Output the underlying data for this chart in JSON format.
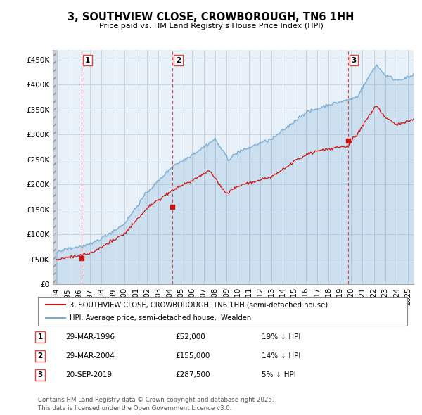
{
  "title": "3, SOUTHVIEW CLOSE, CROWBOROUGH, TN6 1HH",
  "subtitle": "Price paid vs. HM Land Registry's House Price Index (HPI)",
  "hpi_color": "#7aadd4",
  "hpi_fill_color": "#ddeeff",
  "price_color": "#cc1111",
  "dashed_color": "#dd4444",
  "ylim": [
    0,
    470000
  ],
  "yticks": [
    0,
    50000,
    100000,
    150000,
    200000,
    250000,
    300000,
    350000,
    400000,
    450000
  ],
  "ytick_labels": [
    "£0",
    "£50K",
    "£100K",
    "£150K",
    "£200K",
    "£250K",
    "£300K",
    "£350K",
    "£400K",
    "£450K"
  ],
  "xlim_start": 1993.7,
  "xlim_end": 2025.5,
  "xticks": [
    1994,
    1995,
    1996,
    1997,
    1998,
    1999,
    2000,
    2001,
    2002,
    2003,
    2004,
    2005,
    2006,
    2007,
    2008,
    2009,
    2010,
    2011,
    2012,
    2013,
    2014,
    2015,
    2016,
    2017,
    2018,
    2019,
    2020,
    2021,
    2022,
    2023,
    2024,
    2025
  ],
  "transactions": [
    {
      "label": "1",
      "date": "29-MAR-1996",
      "price": 52000,
      "hpi_pct": "19%",
      "year": 1996.24
    },
    {
      "label": "2",
      "date": "29-MAR-2004",
      "price": 155000,
      "hpi_pct": "14%",
      "year": 2004.24
    },
    {
      "label": "3",
      "date": "20-SEP-2019",
      "price": 287500,
      "hpi_pct": "5%",
      "year": 2019.72
    }
  ],
  "legend_line1": "3, SOUTHVIEW CLOSE, CROWBOROUGH, TN6 1HH (semi-detached house)",
  "legend_line2": "HPI: Average price, semi-detached house,  Wealden",
  "footer": "Contains HM Land Registry data © Crown copyright and database right 2025.\nThis data is licensed under the Open Government Licence v3.0.",
  "background_color": "#ffffff",
  "chart_bg_color": "#e8f0f8",
  "grid_color": "#c8d4e0",
  "hatch_color": "#c8c8c8",
  "table_data": [
    [
      "1",
      "29-MAR-1996",
      "£52,000",
      "19% ↓ HPI"
    ],
    [
      "2",
      "29-MAR-2004",
      "£155,000",
      "14% ↓ HPI"
    ],
    [
      "3",
      "20-SEP-2019",
      "£287,500",
      "5% ↓ HPI"
    ]
  ]
}
